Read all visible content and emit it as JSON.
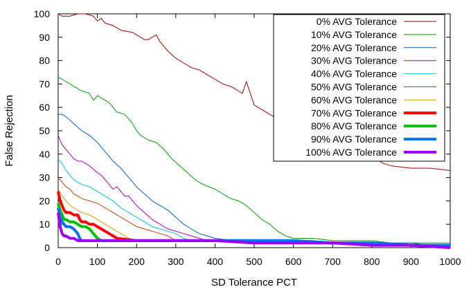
{
  "chart_data": {
    "type": "line",
    "title": "",
    "xlabel": "SD Tolerance PCT",
    "ylabel": "False Rejection",
    "xlim": [
      0,
      1000
    ],
    "ylim": [
      0,
      100
    ],
    "xticks": [
      0,
      100,
      200,
      300,
      400,
      500,
      600,
      700,
      800,
      900,
      1000
    ],
    "yticks": [
      0,
      10,
      20,
      30,
      40,
      50,
      60,
      70,
      80,
      90,
      100
    ],
    "grid": false,
    "legend_position": "top-right, inside, boxed",
    "series": [
      {
        "name": "0% AVG Tolerance",
        "color": "#a00000",
        "thick": false,
        "x": [
          0,
          10,
          30,
          50,
          70,
          90,
          100,
          110,
          120,
          140,
          160,
          190,
          220,
          230,
          240,
          250,
          260,
          270,
          280,
          300,
          320,
          340,
          360,
          380,
          400,
          420,
          440,
          460,
          470,
          480,
          490,
          500,
          520,
          540,
          560,
          580,
          600,
          650,
          700,
          750,
          800,
          820,
          830,
          850,
          900,
          950,
          1000
        ],
        "y": [
          100,
          99,
          99,
          100,
          100,
          99,
          97,
          98,
          96,
          95,
          93,
          92,
          89,
          89,
          90,
          91,
          88,
          86,
          84,
          81,
          79,
          77,
          76,
          74,
          72,
          70,
          69,
          67,
          66,
          71,
          66,
          61,
          59,
          57,
          55,
          53,
          51,
          48,
          46,
          44,
          40,
          37,
          36,
          35,
          34,
          34,
          33
        ]
      },
      {
        "name": "10% AVG Tolerance",
        "color": "#00a000",
        "thick": false,
        "x": [
          0,
          10,
          20,
          40,
          60,
          80,
          90,
          100,
          110,
          130,
          150,
          170,
          190,
          200,
          210,
          230,
          250,
          270,
          290,
          310,
          330,
          350,
          370,
          400,
          420,
          440,
          460,
          480,
          500,
          520,
          540,
          560,
          580,
          600,
          650,
          700,
          750,
          800,
          850,
          900,
          950,
          1000
        ],
        "y": [
          73,
          72,
          71,
          69,
          67,
          66,
          63,
          65,
          64,
          62,
          58,
          57,
          53,
          50,
          48,
          46,
          45,
          42,
          38,
          35,
          32,
          29,
          27,
          25,
          23,
          21,
          20,
          18,
          15,
          12,
          10,
          7,
          5,
          4,
          4,
          3,
          3,
          3,
          2,
          2,
          2,
          2
        ]
      },
      {
        "name": "20% AVG Tolerance",
        "color": "#0060c0",
        "thick": false,
        "x": [
          0,
          10,
          20,
          40,
          60,
          80,
          100,
          120,
          140,
          160,
          180,
          200,
          220,
          240,
          260,
          280,
          300,
          320,
          340,
          360,
          380,
          400,
          450,
          500,
          550,
          600,
          650,
          700,
          750,
          800,
          850,
          900,
          950,
          1000
        ],
        "y": [
          57,
          57,
          56,
          53,
          50,
          48,
          45,
          41,
          37,
          34,
          30,
          26,
          23,
          20,
          18,
          16,
          13,
          10,
          8,
          6,
          5,
          4,
          3,
          3,
          3,
          3,
          3,
          2,
          2,
          2,
          2,
          2,
          1,
          1
        ]
      },
      {
        "name": "30% AVG Tolerance",
        "color": "#a000c0",
        "thick": false,
        "x": [
          0,
          10,
          20,
          30,
          40,
          50,
          60,
          80,
          100,
          110,
          120,
          130,
          140,
          150,
          160,
          170,
          180,
          190,
          200,
          220,
          240,
          260,
          280,
          300,
          320,
          340,
          360,
          380,
          400,
          450,
          500,
          550,
          600,
          650,
          700,
          750,
          800,
          850,
          900,
          950,
          1000
        ],
        "y": [
          48,
          44,
          42,
          40,
          38,
          37,
          37,
          35,
          32,
          31,
          29,
          27,
          25,
          26,
          24,
          22,
          22,
          20,
          18,
          15,
          12,
          10,
          8,
          7,
          6,
          5,
          4,
          3,
          3,
          3,
          3,
          3,
          3,
          3,
          2,
          2,
          2,
          2,
          1,
          1,
          1
        ]
      },
      {
        "name": "40% AVG Tolerance",
        "color": "#00c0e0",
        "thick": false,
        "x": [
          0,
          10,
          20,
          30,
          40,
          50,
          60,
          80,
          100,
          120,
          140,
          160,
          180,
          200,
          220,
          240,
          260,
          280,
          300,
          320,
          340,
          360,
          400,
          450,
          500,
          600,
          700,
          800,
          900,
          1000
        ],
        "y": [
          38,
          36,
          33,
          31,
          29,
          28,
          27,
          26,
          24,
          22,
          20,
          17,
          15,
          13,
          11,
          9,
          8,
          7,
          6,
          4,
          3,
          3,
          3,
          3,
          3,
          3,
          2,
          2,
          1,
          1
        ]
      },
      {
        "name": "50% AVG Tolerance",
        "color": "#c04000",
        "thick": false,
        "x": [
          0,
          10,
          20,
          30,
          40,
          50,
          60,
          80,
          100,
          120,
          140,
          160,
          180,
          200,
          220,
          240,
          260,
          280,
          300,
          400,
          500,
          600,
          700,
          800,
          900,
          1000
        ],
        "y": [
          30,
          28,
          26,
          25,
          23,
          22,
          21,
          20,
          19,
          17,
          15,
          13,
          11,
          9,
          8,
          7,
          6,
          5,
          3,
          3,
          3,
          3,
          2,
          2,
          1,
          1
        ]
      },
      {
        "name": "60% AVG Tolerance",
        "color": "#c8a000",
        "thick": false,
        "x": [
          0,
          10,
          20,
          30,
          40,
          60,
          80,
          100,
          120,
          140,
          160,
          180,
          200,
          300,
          400,
          500,
          600,
          700,
          800,
          900,
          1000
        ],
        "y": [
          25,
          22,
          20,
          18,
          17,
          15,
          14,
          12,
          10,
          8,
          6,
          4,
          3,
          3,
          3,
          3,
          3,
          2,
          2,
          1,
          1
        ]
      },
      {
        "name": "70% AVG Tolerance",
        "color": "#ff0000",
        "thick": true,
        "x": [
          0,
          5,
          10,
          15,
          20,
          30,
          40,
          50,
          55,
          60,
          70,
          80,
          90,
          100,
          110,
          120,
          130,
          140,
          150,
          200,
          300,
          400,
          500,
          600,
          700,
          800,
          900,
          1000
        ],
        "y": [
          24,
          20,
          18,
          16,
          15,
          15,
          14,
          14,
          12,
          11,
          11,
          10,
          10,
          9,
          8,
          7,
          6,
          5,
          4,
          3,
          3,
          3,
          3,
          3,
          2,
          2,
          1,
          1
        ]
      },
      {
        "name": "80% AVG Tolerance",
        "color": "#00c000",
        "thick": true,
        "x": [
          0,
          5,
          10,
          15,
          20,
          30,
          40,
          50,
          60,
          70,
          80,
          90,
          100,
          110,
          120,
          200,
          300,
          400,
          500,
          600,
          700,
          800,
          900,
          1000
        ],
        "y": [
          19,
          16,
          14,
          12,
          12,
          11,
          11,
          10,
          9,
          9,
          8,
          6,
          4,
          3,
          3,
          3,
          3,
          3,
          3,
          3,
          2,
          2,
          1,
          1
        ]
      },
      {
        "name": "90% AVG Tolerance",
        "color": "#0070ff",
        "thick": true,
        "x": [
          0,
          5,
          10,
          15,
          20,
          30,
          40,
          50,
          55,
          60,
          100,
          200,
          300,
          400,
          500,
          600,
          700,
          800,
          900,
          1000
        ],
        "y": [
          17,
          13,
          11,
          10,
          9,
          9,
          8,
          6,
          4,
          3,
          3,
          3,
          3,
          3,
          3,
          3,
          2,
          2,
          1,
          1
        ]
      },
      {
        "name": "100% AVG Tolerance",
        "color": "#a000ff",
        "thick": true,
        "x": [
          0,
          5,
          10,
          15,
          20,
          30,
          40,
          50,
          100,
          200,
          300,
          400,
          500,
          600,
          700,
          800,
          900,
          1000
        ],
        "y": [
          15,
          9,
          6,
          5,
          5,
          4,
          4,
          3,
          3,
          3,
          3,
          3,
          2,
          2,
          2,
          1,
          1,
          0
        ]
      }
    ]
  }
}
